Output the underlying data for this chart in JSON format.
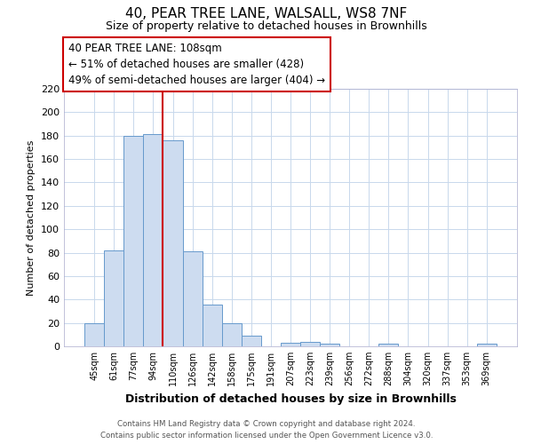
{
  "title": "40, PEAR TREE LANE, WALSALL, WS8 7NF",
  "subtitle": "Size of property relative to detached houses in Brownhills",
  "xlabel": "Distribution of detached houses by size in Brownhills",
  "ylabel": "Number of detached properties",
  "bar_labels": [
    "45sqm",
    "61sqm",
    "77sqm",
    "94sqm",
    "110sqm",
    "126sqm",
    "142sqm",
    "158sqm",
    "175sqm",
    "191sqm",
    "207sqm",
    "223sqm",
    "239sqm",
    "256sqm",
    "272sqm",
    "288sqm",
    "304sqm",
    "320sqm",
    "337sqm",
    "353sqm",
    "369sqm"
  ],
  "bar_values": [
    20,
    82,
    180,
    181,
    176,
    81,
    36,
    20,
    9,
    0,
    3,
    4,
    2,
    0,
    0,
    2,
    0,
    0,
    0,
    0,
    2
  ],
  "bar_color": "#cddcf0",
  "bar_edge_color": "#6699cc",
  "highlight_line_color": "#cc0000",
  "ylim": [
    0,
    220
  ],
  "yticks": [
    0,
    20,
    40,
    60,
    80,
    100,
    120,
    140,
    160,
    180,
    200,
    220
  ],
  "annotation_title": "40 PEAR TREE LANE: 108sqm",
  "annotation_line1": "← 51% of detached houses are smaller (428)",
  "annotation_line2": "49% of semi-detached houses are larger (404) →",
  "annotation_box_color": "#ffffff",
  "annotation_box_edge": "#cc0000",
  "footer_line1": "Contains HM Land Registry data © Crown copyright and database right 2024.",
  "footer_line2": "Contains public sector information licensed under the Open Government Licence v3.0.",
  "background_color": "#ffffff",
  "grid_color": "#c8d8ec"
}
